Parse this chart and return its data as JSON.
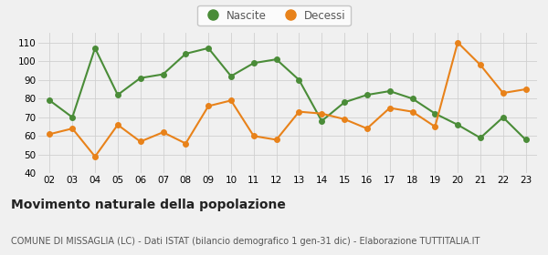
{
  "years": [
    "02",
    "03",
    "04",
    "05",
    "06",
    "07",
    "08",
    "09",
    "10",
    "11",
    "12",
    "13",
    "14",
    "15",
    "16",
    "17",
    "18",
    "19",
    "20",
    "21",
    "22",
    "23"
  ],
  "nascite": [
    79,
    70,
    107,
    82,
    91,
    93,
    104,
    107,
    92,
    99,
    101,
    90,
    68,
    78,
    82,
    84,
    80,
    72,
    66,
    59,
    70,
    58
  ],
  "decessi": [
    61,
    64,
    49,
    66,
    57,
    62,
    56,
    76,
    79,
    60,
    58,
    73,
    72,
    69,
    64,
    75,
    73,
    65,
    110,
    98,
    83,
    85
  ],
  "nascite_color": "#4a8c38",
  "decessi_color": "#e8821a",
  "bg_color": "#f0f0f0",
  "grid_color": "#d0d0d0",
  "ylim": [
    40,
    115
  ],
  "yticks": [
    40,
    50,
    60,
    70,
    80,
    90,
    100,
    110
  ],
  "title": "Movimento naturale della popolazione",
  "subtitle": "COMUNE DI MISSAGLIA (LC) - Dati ISTAT (bilancio demografico 1 gen-31 dic) - Elaborazione TUTTITALIA.IT",
  "legend_nascite": "Nascite",
  "legend_decessi": "Decessi",
  "marker_size": 4,
  "linewidth": 1.5,
  "title_fontsize": 10,
  "subtitle_fontsize": 7,
  "tick_fontsize": 7.5
}
